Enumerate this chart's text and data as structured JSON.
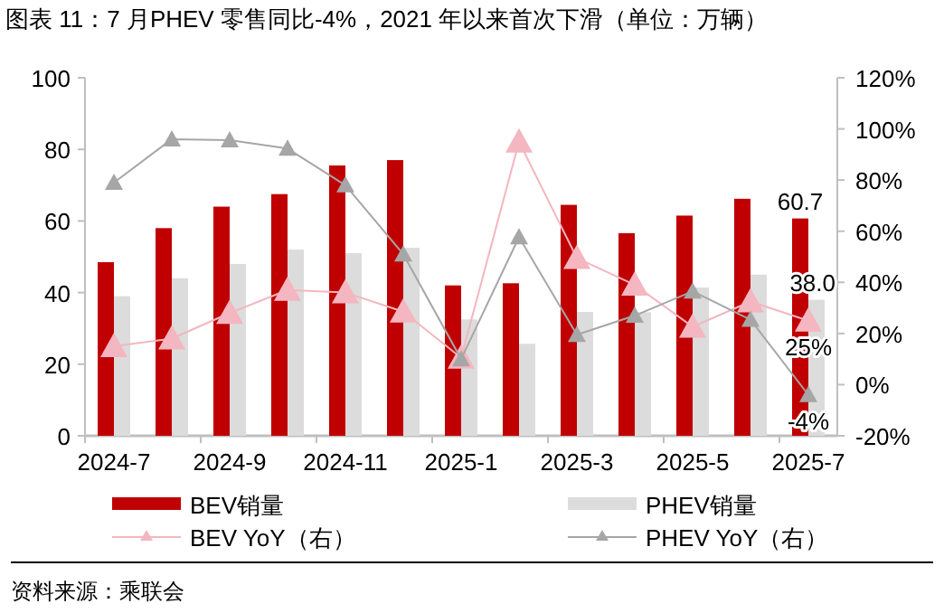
{
  "chart_data": {
    "type": "bar",
    "title": "图表 11：7 月PHEV 零售同比-4%，2021 年以来首次下滑（单位：万辆）",
    "categories": [
      "2024-7",
      null,
      "2024-9",
      null,
      "2024-11",
      null,
      "2025-1",
      null,
      "2025-3",
      null,
      "2025-5",
      null,
      "2025-7"
    ],
    "series": [
      {
        "name": "BEV销量",
        "color": "#c00000",
        "values": [
          48.5,
          58,
          64,
          67.5,
          75.5,
          77,
          42,
          42.6,
          64.5,
          56.6,
          61.5,
          66.2,
          60.7
        ],
        "value_labels": [
          null,
          null,
          null,
          null,
          null,
          null,
          null,
          null,
          null,
          null,
          null,
          null,
          "60.7"
        ]
      },
      {
        "name": "PHEV销量",
        "color": "#dcdcdc",
        "values": [
          39,
          44,
          48,
          52,
          51,
          52.5,
          32.5,
          25.7,
          34.6,
          34.5,
          41.4,
          45,
          38.0
        ],
        "value_labels": [
          null,
          null,
          null,
          null,
          null,
          null,
          null,
          null,
          null,
          null,
          null,
          null,
          "38.0"
        ]
      },
      {
        "name": "BEV YoY（右）",
        "type": "line",
        "axis": "y2",
        "color": "#f4b6c0",
        "values": [
          15,
          18,
          28,
          37,
          36,
          28.5,
          10.5,
          95,
          49.5,
          39,
          22.6,
          32.5,
          25
        ],
        "value_labels": [
          null,
          null,
          null,
          null,
          null,
          null,
          null,
          null,
          null,
          null,
          null,
          null,
          "25%"
        ]
      },
      {
        "name": "PHEV YoY（右）",
        "type": "line",
        "axis": "y2",
        "color": "#a6a6a6",
        "values": [
          79,
          96,
          95.6,
          92.3,
          78,
          51,
          10,
          57.7,
          19.5,
          27,
          36.5,
          25.4,
          -4
        ],
        "value_labels": [
          null,
          null,
          null,
          null,
          null,
          null,
          null,
          null,
          null,
          null,
          null,
          null,
          "-4%"
        ]
      }
    ],
    "ylim": [
      0,
      100
    ],
    "yticks": [
      0,
      20,
      40,
      60,
      80,
      100
    ],
    "y2lim": [
      -20,
      120
    ],
    "y2ticks": [
      {
        "value": -20,
        "label": "-20%"
      },
      {
        "value": 0,
        "label": "0%"
      },
      {
        "value": 20,
        "label": "20%"
      },
      {
        "value": 40,
        "label": "40%"
      },
      {
        "value": 60,
        "label": "60%"
      },
      {
        "value": 80,
        "label": "80%"
      },
      {
        "value": 100,
        "label": "100%"
      },
      {
        "value": 120,
        "label": "120%"
      }
    ],
    "legend": "bottom",
    "marker": "triangle",
    "annotations": [
      "资料来源：乘联会"
    ]
  }
}
